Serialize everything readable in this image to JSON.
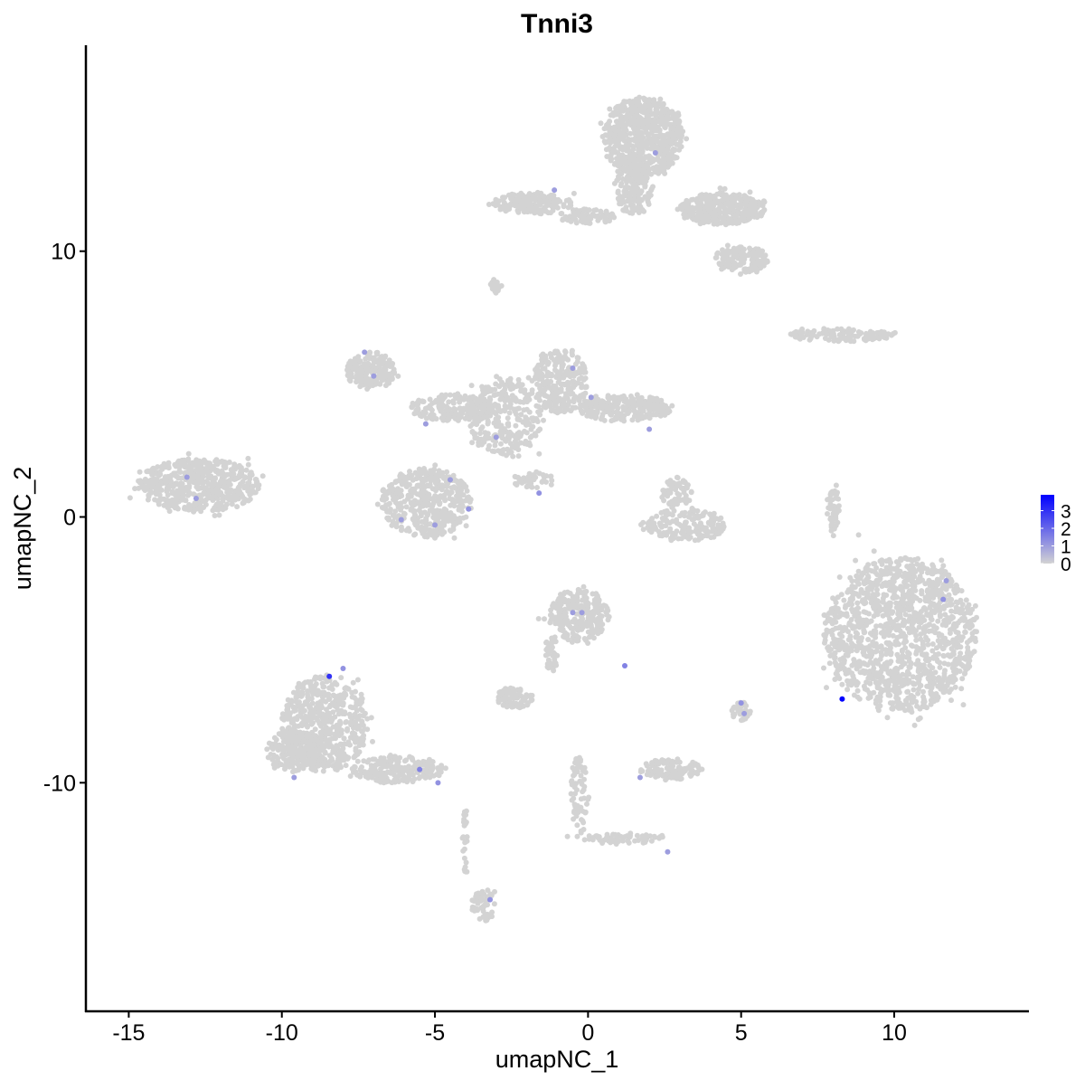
{
  "chart_data": {
    "type": "scatter",
    "title": "Tnni3",
    "xlabel": "umapNC_1",
    "ylabel": "umapNC_2",
    "xlim": [
      -16.4,
      14.4
    ],
    "ylim": [
      -18.6,
      17.75
    ],
    "x_ticks": [
      -15,
      -10,
      -5,
      0,
      5,
      10
    ],
    "x_tick_labels": [
      "-15",
      "-10",
      "-5",
      "0",
      "5",
      "10"
    ],
    "y_ticks": [
      -10,
      0,
      10
    ],
    "y_tick_labels": [
      "-10",
      "0",
      "10"
    ],
    "grid": false,
    "legend": {
      "placement": "right",
      "type": "colorbar",
      "ticks": [
        0,
        1,
        2,
        3
      ],
      "tick_labels": [
        "0",
        "1",
        "2",
        "3"
      ],
      "range": [
        0,
        3.9
      ],
      "low_color": "#d3d3d3",
      "high_color": "#0000ff"
    },
    "clusters": [
      {
        "cx": 1.8,
        "cy": 14.3,
        "rx": 1.3,
        "ry": 1.5,
        "n": 700
      },
      {
        "cx": 1.5,
        "cy": 12.3,
        "rx": 0.6,
        "ry": 1.0,
        "n": 150
      },
      {
        "cx": 4.4,
        "cy": 11.6,
        "rx": 1.4,
        "ry": 0.6,
        "n": 350
      },
      {
        "cx": 5.0,
        "cy": 9.7,
        "rx": 0.9,
        "ry": 0.5,
        "n": 150
      },
      {
        "cx": -1.8,
        "cy": 11.8,
        "rx": 1.3,
        "ry": 0.4,
        "n": 180
      },
      {
        "cx": 0.0,
        "cy": 11.3,
        "rx": 1.0,
        "ry": 0.3,
        "n": 80
      },
      {
        "cx": 8.3,
        "cy": 6.85,
        "rx": 1.7,
        "ry": 0.25,
        "n": 120
      },
      {
        "cx": -12.7,
        "cy": 1.2,
        "rx": 2.0,
        "ry": 1.0,
        "n": 550
      },
      {
        "cx": -7.1,
        "cy": 5.5,
        "rx": 0.8,
        "ry": 0.7,
        "n": 200
      },
      {
        "cx": -4.4,
        "cy": 4.1,
        "rx": 1.5,
        "ry": 0.5,
        "n": 200
      },
      {
        "cx": -5.3,
        "cy": 0.55,
        "rx": 1.5,
        "ry": 1.3,
        "n": 450
      },
      {
        "cx": -2.7,
        "cy": 3.8,
        "rx": 1.2,
        "ry": 1.5,
        "n": 300
      },
      {
        "cx": -0.9,
        "cy": 5.1,
        "rx": 0.9,
        "ry": 1.2,
        "n": 250
      },
      {
        "cx": 1.2,
        "cy": 4.1,
        "rx": 1.6,
        "ry": 0.5,
        "n": 250
      },
      {
        "cx": -1.8,
        "cy": 1.4,
        "rx": 0.7,
        "ry": 0.3,
        "n": 40
      },
      {
        "cx": 3.2,
        "cy": -0.3,
        "rx": 1.3,
        "ry": 0.6,
        "n": 180
      },
      {
        "cx": 2.9,
        "cy": 0.9,
        "rx": 0.5,
        "ry": 0.6,
        "n": 70
      },
      {
        "cx": 8.0,
        "cy": 0.4,
        "rx": 0.2,
        "ry": 1.0,
        "n": 50
      },
      {
        "cx": 10.2,
        "cy": -4.4,
        "rx": 2.5,
        "ry": 2.9,
        "n": 1300
      },
      {
        "cx": -0.3,
        "cy": -3.7,
        "rx": 1.0,
        "ry": 1.0,
        "n": 250
      },
      {
        "cx": -8.6,
        "cy": -7.8,
        "rx": 1.4,
        "ry": 1.8,
        "n": 550
      },
      {
        "cx": -9.5,
        "cy": -8.8,
        "rx": 1.0,
        "ry": 0.8,
        "n": 200
      },
      {
        "cx": -6.2,
        "cy": -9.5,
        "rx": 1.5,
        "ry": 0.5,
        "n": 200
      },
      {
        "cx": -2.4,
        "cy": -6.8,
        "rx": 0.6,
        "ry": 0.4,
        "n": 80
      },
      {
        "cx": -1.2,
        "cy": -5.1,
        "rx": 0.2,
        "ry": 0.8,
        "n": 40
      },
      {
        "cx": 2.7,
        "cy": -9.5,
        "rx": 1.0,
        "ry": 0.4,
        "n": 120
      },
      {
        "cx": 5.0,
        "cy": -7.3,
        "rx": 0.3,
        "ry": 0.4,
        "n": 40
      },
      {
        "cx": -3.4,
        "cy": -14.6,
        "rx": 0.4,
        "ry": 0.6,
        "n": 60
      },
      {
        "cx": -4.0,
        "cy": -12.2,
        "rx": 0.1,
        "ry": 1.5,
        "n": 25
      },
      {
        "cx": -0.3,
        "cy": -10.5,
        "rx": 0.3,
        "ry": 1.5,
        "n": 70
      },
      {
        "cx": 1.2,
        "cy": -12.1,
        "rx": 1.5,
        "ry": 0.2,
        "n": 60
      },
      {
        "cx": -3.0,
        "cy": 8.7,
        "rx": 0.2,
        "ry": 0.3,
        "n": 20
      }
    ],
    "expressing_points": [
      {
        "x": 8.3,
        "y": -6.85,
        "value": 3.9
      },
      {
        "x": -8.45,
        "y": -6.0,
        "value": 3.0
      },
      {
        "x": -7.3,
        "y": 6.2,
        "value": 1.0
      },
      {
        "x": -7.0,
        "y": 5.3,
        "value": 1.0
      },
      {
        "x": -5.3,
        "y": 3.5,
        "value": 1.0
      },
      {
        "x": -4.5,
        "y": 1.4,
        "value": 1.0
      },
      {
        "x": -6.1,
        "y": -0.1,
        "value": 1.0
      },
      {
        "x": -5.0,
        "y": -0.3,
        "value": 1.0
      },
      {
        "x": -3.9,
        "y": 0.3,
        "value": 1.2
      },
      {
        "x": -3.0,
        "y": 3.0,
        "value": 1.0
      },
      {
        "x": -1.6,
        "y": 0.9,
        "value": 1.2
      },
      {
        "x": -0.5,
        "y": 5.6,
        "value": 1.0
      },
      {
        "x": 0.1,
        "y": 4.5,
        "value": 1.0
      },
      {
        "x": 2.0,
        "y": 3.3,
        "value": 1.0
      },
      {
        "x": -13.1,
        "y": 1.5,
        "value": 1.0
      },
      {
        "x": -12.8,
        "y": 0.7,
        "value": 1.0
      },
      {
        "x": 11.6,
        "y": -3.1,
        "value": 1.2
      },
      {
        "x": 11.7,
        "y": -2.4,
        "value": 1.0
      },
      {
        "x": -0.5,
        "y": -3.6,
        "value": 1.0
      },
      {
        "x": -0.2,
        "y": -3.6,
        "value": 1.0
      },
      {
        "x": 1.2,
        "y": -5.6,
        "value": 1.5
      },
      {
        "x": 5.0,
        "y": -7.0,
        "value": 1.2
      },
      {
        "x": 5.1,
        "y": -7.4,
        "value": 1.0
      },
      {
        "x": -5.5,
        "y": -9.5,
        "value": 1.5
      },
      {
        "x": -4.9,
        "y": -10.0,
        "value": 1.2
      },
      {
        "x": -9.6,
        "y": -9.8,
        "value": 1.0
      },
      {
        "x": -3.2,
        "y": -14.4,
        "value": 1.2
      },
      {
        "x": -8.0,
        "y": -5.7,
        "value": 1.2
      },
      {
        "x": 1.7,
        "y": -9.8,
        "value": 1.0
      },
      {
        "x": 2.6,
        "y": -12.6,
        "value": 1.0
      },
      {
        "x": 2.2,
        "y": 13.7,
        "value": 1.0
      },
      {
        "x": -1.1,
        "y": 12.3,
        "value": 1.0
      }
    ]
  }
}
